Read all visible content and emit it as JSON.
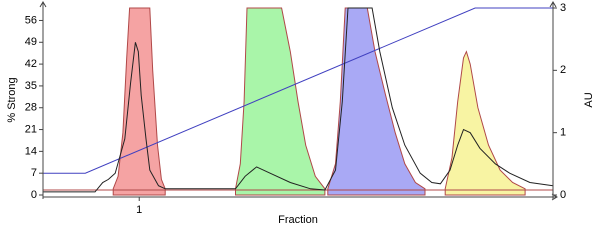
{
  "chart_data": {
    "type": "line",
    "xlabel": "Fraction",
    "ylabel": "% Strong",
    "y2label": "AU",
    "xlim": [
      0,
      5.3
    ],
    "xticks": [
      1
    ],
    "ylim": [
      0,
      60
    ],
    "yticks": [
      0,
      7,
      14,
      21,
      28,
      35,
      42,
      49,
      56
    ],
    "y2lim": [
      0,
      3
    ],
    "y2ticks": [
      0,
      1,
      2,
      3
    ],
    "series": [
      {
        "kind": "area",
        "axis": "y2",
        "color": "#b04848",
        "fill": "#f5a3a3",
        "x": [
          0.73,
          0.78,
          0.83,
          0.87,
          0.9,
          1.11,
          1.14,
          1.19,
          1.23,
          1.27
        ],
        "values": [
          0.1,
          0.3,
          1.0,
          2.2,
          3,
          3,
          2,
          0.8,
          0.25,
          0.1
        ]
      },
      {
        "kind": "area",
        "axis": "y2",
        "color": "#b04848",
        "fill": "#a9f5a9",
        "x": [
          2.0,
          2.05,
          2.09,
          2.12,
          2.48,
          2.57,
          2.65,
          2.73,
          2.83,
          2.93
        ],
        "values": [
          0.1,
          0.5,
          1.5,
          3,
          3,
          2.3,
          1.5,
          0.8,
          0.3,
          0.1
        ]
      },
      {
        "kind": "area",
        "axis": "y2",
        "color": "#b04848",
        "fill": "#a9a9f5",
        "x": [
          2.96,
          3.04,
          3.09,
          3.14,
          3.37,
          3.45,
          3.56,
          3.66,
          3.76,
          3.87,
          3.97
        ],
        "values": [
          0.1,
          0.5,
          1.5,
          3,
          3,
          2.3,
          1.6,
          1.0,
          0.5,
          0.2,
          0.1
        ]
      },
      {
        "kind": "area",
        "axis": "y2",
        "color": "#b04848",
        "fill": "#f8f4a3",
        "x": [
          4.18,
          4.25,
          4.31,
          4.37,
          4.4,
          4.44,
          4.52,
          4.63,
          4.75,
          4.88,
          5.01
        ],
        "values": [
          0.1,
          0.6,
          1.5,
          2.2,
          2.3,
          2.1,
          1.4,
          0.8,
          0.4,
          0.2,
          0.1
        ]
      },
      {
        "kind": "line",
        "axis": "y2",
        "color": "#b04848",
        "x": [
          0,
          5.3
        ],
        "values": [
          0.08,
          0.08
        ]
      },
      {
        "kind": "line",
        "axis": "y",
        "color": "#4040c0",
        "x": [
          0,
          0.44,
          4.49,
          5.3
        ],
        "values": [
          7,
          7,
          60,
          60
        ]
      },
      {
        "kind": "line",
        "axis": "y2",
        "color": "#222222",
        "x": [
          0,
          0.54,
          0.62,
          0.68,
          0.75,
          0.85,
          0.91,
          0.96,
          0.99,
          1.02,
          1.07,
          1.11,
          1.2,
          1.27,
          2.0,
          2.1,
          2.22,
          2.36,
          2.57,
          2.78,
          2.93,
          3.04,
          3.11,
          3.17,
          3.42,
          3.5,
          3.63,
          3.76,
          3.92,
          4.04,
          4.13,
          4.23,
          4.31,
          4.37,
          4.44,
          4.54,
          4.7,
          4.85,
          5.06,
          5.3
        ],
        "values": [
          0.05,
          0.05,
          0.2,
          0.25,
          0.35,
          0.9,
          1.8,
          2.45,
          2.3,
          1.6,
          0.9,
          0.4,
          0.15,
          0.1,
          0.1,
          0.3,
          0.45,
          0.35,
          0.2,
          0.1,
          0.08,
          0.4,
          1.5,
          3,
          3,
          2.3,
          1.4,
          0.8,
          0.35,
          0.2,
          0.18,
          0.4,
          0.8,
          1.05,
          1.0,
          0.75,
          0.5,
          0.35,
          0.2,
          0.15
        ]
      }
    ]
  }
}
